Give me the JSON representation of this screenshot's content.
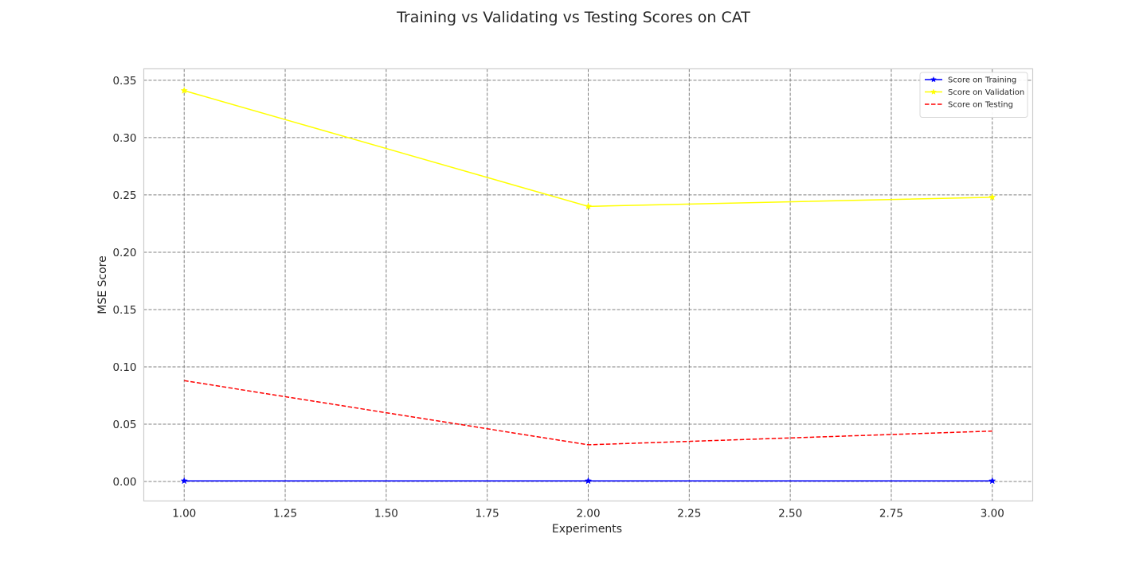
{
  "chart_data": {
    "type": "line",
    "title": "Training vs Validating vs Testing Scores on CAT",
    "xlabel": "Experiments",
    "ylabel": "MSE Score",
    "xlim": [
      0.9,
      3.1
    ],
    "ylim": [
      -0.017,
      0.36
    ],
    "xticks": [
      1.0,
      1.25,
      1.5,
      1.75,
      2.0,
      2.25,
      2.5,
      2.75,
      3.0
    ],
    "xtick_labels": [
      "1.00",
      "1.25",
      "1.50",
      "1.75",
      "2.00",
      "2.25",
      "2.50",
      "2.75",
      "3.00"
    ],
    "yticks": [
      0.0,
      0.05,
      0.1,
      0.15,
      0.2,
      0.25,
      0.3,
      0.35
    ],
    "ytick_labels": [
      "0.00",
      "0.05",
      "0.10",
      "0.15",
      "0.20",
      "0.25",
      "0.30",
      "0.35"
    ],
    "grid": true,
    "legend_position": "top-right",
    "x": [
      1,
      2,
      3
    ],
    "series": [
      {
        "name": "Score on Training",
        "values": [
          0.0005,
          0.0005,
          0.0005
        ],
        "color": "#0000ff",
        "linestyle": "solid",
        "marker": "star"
      },
      {
        "name": "Score on Validation",
        "values": [
          0.341,
          0.24,
          0.248
        ],
        "color": "#ffff00",
        "linestyle": "solid",
        "marker": "star"
      },
      {
        "name": "Score on Testing",
        "values": [
          0.088,
          0.032,
          0.044
        ],
        "color": "#ff0000",
        "linestyle": "dashed",
        "marker": "none"
      }
    ],
    "colors": {
      "grid": "#808080",
      "frame": "#cccccc",
      "text": "#262626"
    }
  }
}
